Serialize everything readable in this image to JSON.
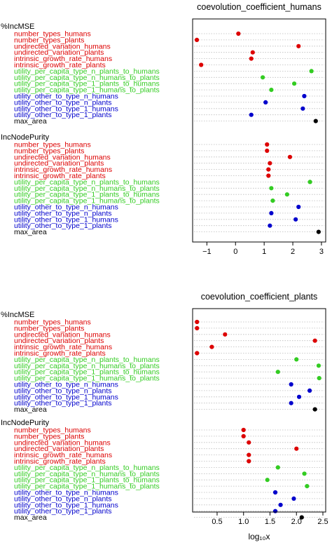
{
  "colors": {
    "red": "#dd0000",
    "green": "#33cc22",
    "blue": "#0000cc",
    "black": "#000000",
    "grid": "#bbbbbb"
  },
  "variables": [
    {
      "name": "number_types_humans",
      "group": "red"
    },
    {
      "name": "number_types_plants",
      "group": "red"
    },
    {
      "name": "undirected_variation_humans",
      "group": "red"
    },
    {
      "name": "undirected_variation_plants",
      "group": "red"
    },
    {
      "name": "intrinsic_growth_rate_humans",
      "group": "red"
    },
    {
      "name": "intrinsic_growth_rate_plants",
      "group": "red"
    },
    {
      "name": "utility_per_capita_type_n_plants_to_humans",
      "group": "green"
    },
    {
      "name": "utility_per_capita_type_n_humans_to_plants",
      "group": "green"
    },
    {
      "name": "utility_per_capita_type_1_plants_to_humans",
      "group": "green"
    },
    {
      "name": "utility_per_capita_type_1_humans_to_plants",
      "group": "green"
    },
    {
      "name": "utility_other_to_type_n_humans",
      "group": "blue"
    },
    {
      "name": "utility_other_to_type_n_plants",
      "group": "blue"
    },
    {
      "name": "utility_other_to_type_1_humans",
      "group": "blue"
    },
    {
      "name": "utility_other_to_type_1_plants",
      "group": "blue"
    },
    {
      "name": "max_area",
      "group": "black"
    }
  ],
  "chart_data": [
    {
      "type": "scatter",
      "title": "coevolution_coefficient_humans",
      "xlim": [
        -1.4,
        3.05
      ],
      "xticks": [
        -1,
        0,
        1,
        2,
        3
      ],
      "sections": [
        {
          "label": "%IncMSE",
          "values": [
            0.1,
            -1.35,
            2.2,
            0.6,
            0.55,
            -1.2,
            2.65,
            0.95,
            2.05,
            1.25,
            2.4,
            1.05,
            2.35,
            0.55,
            2.8
          ]
        },
        {
          "label": "IncNodePurity",
          "values": [
            1.1,
            1.1,
            1.9,
            1.2,
            1.15,
            1.15,
            2.6,
            1.25,
            1.8,
            1.3,
            2.2,
            1.25,
            2.1,
            1.2,
            2.9
          ]
        }
      ]
    },
    {
      "type": "scatter",
      "title": "coevolution_coefficient_plants",
      "xlim": [
        0.09,
        2.5
      ],
      "xticks": [
        0.5,
        1.0,
        1.5,
        2.0,
        2.5
      ],
      "xlabel": "log₁₀x",
      "sections": [
        {
          "label": "%IncMSE",
          "values": [
            0.12,
            0.12,
            0.65,
            2.35,
            0.4,
            0.12,
            2.0,
            2.42,
            1.65,
            2.43,
            1.9,
            2.25,
            2.05,
            1.9,
            2.35
          ]
        },
        {
          "label": "IncNodePurity",
          "values": [
            1.0,
            1.0,
            1.1,
            2.0,
            1.1,
            1.1,
            1.65,
            2.15,
            1.45,
            2.2,
            1.6,
            1.95,
            1.7,
            1.6,
            2.1
          ]
        }
      ]
    }
  ]
}
